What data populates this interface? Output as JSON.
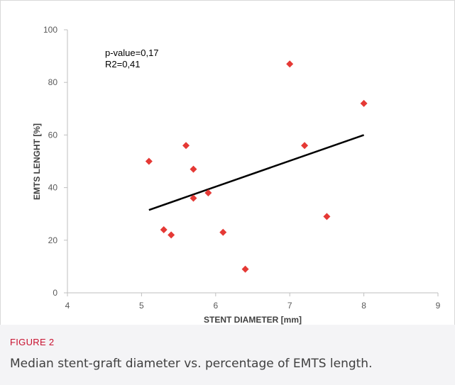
{
  "figure": {
    "label": "FIGURE 2",
    "caption": "Median stent-graft diameter vs. percentage of EMTS length."
  },
  "chart_data": {
    "type": "scatter",
    "title": "",
    "xlabel": "STENT DIAMETER [mm]",
    "ylabel": "EMTS LENGHT [%]",
    "xlim": [
      4,
      9
    ],
    "ylim": [
      0,
      100
    ],
    "xticks": [
      4,
      5,
      6,
      7,
      8,
      9
    ],
    "yticks": [
      0,
      20,
      40,
      60,
      80,
      100
    ],
    "grid": false,
    "annotations": [
      "p-value=0,17",
      "R2=0,41"
    ],
    "points": [
      {
        "x": 5.1,
        "y": 50
      },
      {
        "x": 5.3,
        "y": 24
      },
      {
        "x": 5.4,
        "y": 22
      },
      {
        "x": 5.6,
        "y": 56
      },
      {
        "x": 5.7,
        "y": 47
      },
      {
        "x": 5.7,
        "y": 36
      },
      {
        "x": 5.9,
        "y": 38
      },
      {
        "x": 6.1,
        "y": 23
      },
      {
        "x": 6.4,
        "y": 9
      },
      {
        "x": 7.0,
        "y": 87
      },
      {
        "x": 7.2,
        "y": 56
      },
      {
        "x": 7.5,
        "y": 29
      },
      {
        "x": 8.0,
        "y": 72
      }
    ],
    "trendline": {
      "x": [
        5.1,
        8.0
      ],
      "y": [
        31.5,
        60
      ]
    },
    "colors": {
      "points": "#e53935",
      "trendline": "#000000",
      "axis": "#bfbfbf"
    }
  }
}
